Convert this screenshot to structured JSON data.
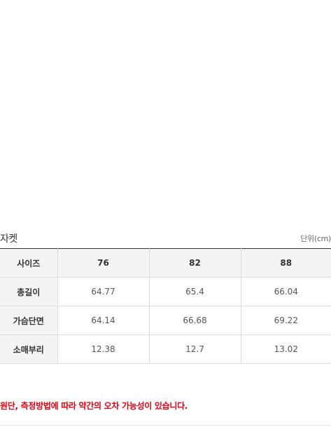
{
  "size_guide": {
    "title": "자켓",
    "unit": "단위(cm)",
    "header": [
      "사이즈",
      "76",
      "82",
      "88"
    ],
    "rows": [
      {
        "label": "총길이",
        "values": [
          "64.77",
          "65.4",
          "66.04"
        ]
      },
      {
        "label": "가슴단면",
        "values": [
          "64.14",
          "66.68",
          "69.22"
        ]
      },
      {
        "label": "소매부리",
        "values": [
          "12.38",
          "12.7",
          "13.02"
        ]
      }
    ]
  },
  "notice": "원단, 측정방법에 따라 약간의 오차 가능성이 있습니다.",
  "colors": {
    "notice": "#e60012",
    "header_bg": "#f4f4f4",
    "border": "#dcdcdc"
  }
}
